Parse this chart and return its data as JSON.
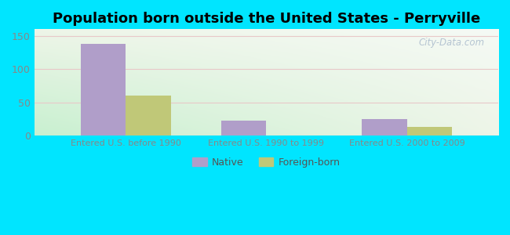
{
  "title": "Population born outside the United States - Perryville",
  "categories": [
    "Entered U.S. before 1990",
    "Entered U.S. 1990 to 1999",
    "Entered U.S. 2000 to 2009"
  ],
  "native_values": [
    138,
    23,
    25
  ],
  "foreign_values": [
    60,
    0,
    13
  ],
  "native_color": "#b09ec9",
  "foreign_color": "#c0c878",
  "ylim": [
    0,
    160
  ],
  "yticks": [
    0,
    50,
    100,
    150
  ],
  "background_outer": "#00e5ff",
  "bar_width": 0.32,
  "title_fontsize": 13,
  "axis_label_color": "#33aaaa",
  "tick_label_color": "#888888",
  "legend_native": "Native",
  "legend_foreign": "Foreign-born",
  "watermark": "City-Data.com",
  "grid_color": "#e8c8c8",
  "separator_color": "#cccccc"
}
